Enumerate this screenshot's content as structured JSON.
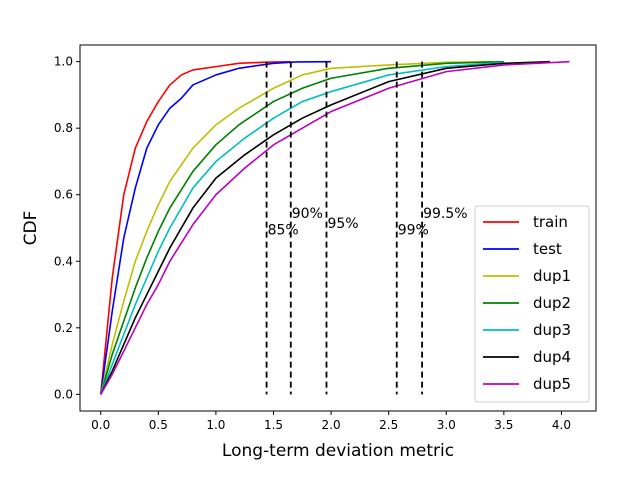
{
  "chart_data": {
    "type": "line",
    "xlabel": "Long-term deviation metric",
    "ylabel": "CDF",
    "xlim": [
      -0.18,
      4.3
    ],
    "ylim": [
      -0.05,
      1.05
    ],
    "xticks": [
      0.0,
      0.5,
      1.0,
      1.5,
      2.0,
      2.5,
      3.0,
      3.5,
      4.0
    ],
    "xtick_labels": [
      "0.0",
      "0.5",
      "1.0",
      "1.5",
      "2.0",
      "2.5",
      "3.0",
      "3.5",
      "4.0"
    ],
    "yticks": [
      0.0,
      0.2,
      0.4,
      0.6,
      0.8,
      1.0
    ],
    "ytick_labels": [
      "0.0",
      "0.2",
      "0.4",
      "0.6",
      "0.8",
      "1.0"
    ],
    "grid": false,
    "legend_position": "lower-right",
    "series": [
      {
        "name": "train",
        "color": "#ff0000",
        "x": [
          0.0,
          0.1,
          0.2,
          0.3,
          0.4,
          0.5,
          0.6,
          0.7,
          0.8,
          1.0,
          1.2,
          1.4,
          1.65
        ],
        "y": [
          0.0,
          0.35,
          0.6,
          0.74,
          0.82,
          0.88,
          0.93,
          0.96,
          0.975,
          0.985,
          0.995,
          0.998,
          1.0
        ]
      },
      {
        "name": "test",
        "color": "#0000ff",
        "x": [
          0.0,
          0.1,
          0.2,
          0.3,
          0.4,
          0.5,
          0.6,
          0.7,
          0.8,
          1.0,
          1.2,
          1.5,
          1.7,
          2.0
        ],
        "y": [
          0.0,
          0.25,
          0.47,
          0.62,
          0.74,
          0.81,
          0.86,
          0.89,
          0.93,
          0.96,
          0.98,
          0.995,
          0.999,
          1.0
        ]
      },
      {
        "name": "dup1",
        "color": "#bfbf00",
        "x": [
          0.0,
          0.1,
          0.2,
          0.3,
          0.4,
          0.5,
          0.6,
          0.8,
          1.0,
          1.2,
          1.5,
          1.75,
          2.0,
          2.5,
          3.0,
          3.4
        ],
        "y": [
          0.0,
          0.15,
          0.28,
          0.4,
          0.49,
          0.57,
          0.64,
          0.74,
          0.81,
          0.86,
          0.92,
          0.96,
          0.98,
          0.99,
          0.998,
          1.0
        ]
      },
      {
        "name": "dup2",
        "color": "#008000",
        "x": [
          0.0,
          0.1,
          0.2,
          0.3,
          0.4,
          0.5,
          0.6,
          0.8,
          1.0,
          1.2,
          1.5,
          1.75,
          2.0,
          2.5,
          3.0,
          3.5
        ],
        "y": [
          0.0,
          0.12,
          0.22,
          0.32,
          0.41,
          0.49,
          0.56,
          0.67,
          0.75,
          0.81,
          0.88,
          0.92,
          0.95,
          0.98,
          0.995,
          1.0
        ]
      },
      {
        "name": "dup3",
        "color": "#00bfbf",
        "x": [
          0.0,
          0.1,
          0.2,
          0.3,
          0.4,
          0.5,
          0.6,
          0.8,
          1.0,
          1.25,
          1.5,
          1.75,
          2.0,
          2.5,
          3.0,
          3.5
        ],
        "y": [
          0.0,
          0.09,
          0.18,
          0.27,
          0.35,
          0.43,
          0.5,
          0.62,
          0.7,
          0.77,
          0.83,
          0.88,
          0.91,
          0.96,
          0.985,
          0.998
        ]
      },
      {
        "name": "dup4",
        "color": "#000000",
        "x": [
          0.0,
          0.1,
          0.2,
          0.3,
          0.4,
          0.5,
          0.6,
          0.8,
          1.0,
          1.25,
          1.5,
          1.75,
          2.0,
          2.5,
          3.0,
          3.5,
          3.9
        ],
        "y": [
          0.0,
          0.07,
          0.15,
          0.23,
          0.3,
          0.37,
          0.44,
          0.56,
          0.65,
          0.72,
          0.78,
          0.83,
          0.87,
          0.94,
          0.98,
          0.995,
          1.0
        ]
      },
      {
        "name": "dup5",
        "color": "#bf00bf",
        "x": [
          0.0,
          0.1,
          0.2,
          0.3,
          0.4,
          0.5,
          0.6,
          0.8,
          1.0,
          1.25,
          1.5,
          1.75,
          2.0,
          2.5,
          3.0,
          3.5,
          4.07
        ],
        "y": [
          0.0,
          0.06,
          0.13,
          0.2,
          0.27,
          0.33,
          0.4,
          0.51,
          0.6,
          0.68,
          0.75,
          0.8,
          0.85,
          0.92,
          0.97,
          0.99,
          1.0
        ]
      }
    ],
    "percentile_lines": [
      {
        "label": "85%",
        "x": 1.44,
        "y_top": 1.0,
        "label_y": 0.48,
        "label_anchor": "start"
      },
      {
        "label": "90%",
        "x": 1.65,
        "y_top": 1.0,
        "label_y": 0.53,
        "label_anchor": "start"
      },
      {
        "label": "95%",
        "x": 1.96,
        "y_top": 1.0,
        "label_y": 0.5,
        "label_anchor": "start"
      },
      {
        "label": "99%",
        "x": 2.57,
        "y_top": 1.0,
        "label_y": 0.48,
        "label_anchor": "start"
      },
      {
        "label": "99.5%",
        "x": 2.79,
        "y_top": 1.0,
        "label_y": 0.53,
        "label_anchor": "start"
      }
    ]
  }
}
